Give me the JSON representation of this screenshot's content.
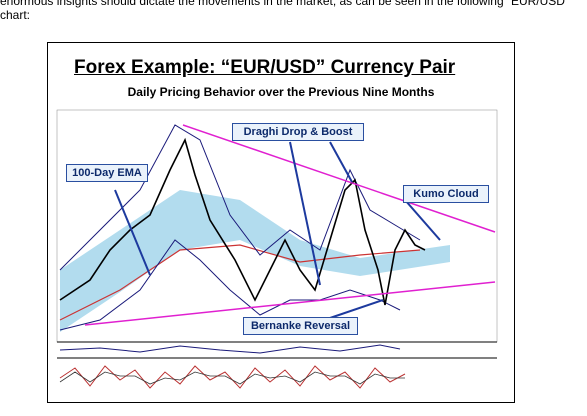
{
  "intro": "enormous insights should dictate the movements in the market, as can be seen in the following “EUR/USD” chart:",
  "figure": {
    "title": "Forex Example:  “EUR/USD” Currency Pair",
    "subtitle": "Daily Pricing Behavior over the Previous Nine Months",
    "annotations": [
      "Draghi Drop & Boost",
      "100-Day EMA",
      "Kumo Cloud",
      "Bernanke Reversal"
    ]
  }
}
